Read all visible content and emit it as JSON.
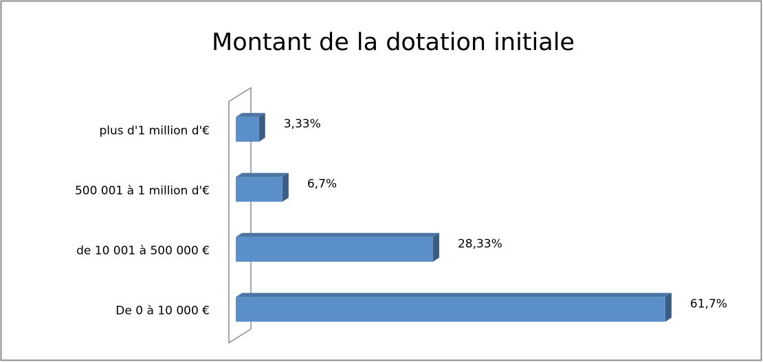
{
  "chart_data": {
    "type": "bar3d_horizontal",
    "title": "Montant de la dotation initiale",
    "categories": [
      "plus d'1 million d'€",
      "500 001 à 1 million d'€",
      "de 10 001 à 500 000 €",
      "De 0 à 10 000 €"
    ],
    "values": [
      3.33,
      6.7,
      28.33,
      61.7
    ],
    "value_labels": [
      "3,33%",
      "6,7%",
      "28,33%",
      "61,7%"
    ],
    "color": "#5b8fc9",
    "xlim": [
      0,
      70
    ]
  }
}
